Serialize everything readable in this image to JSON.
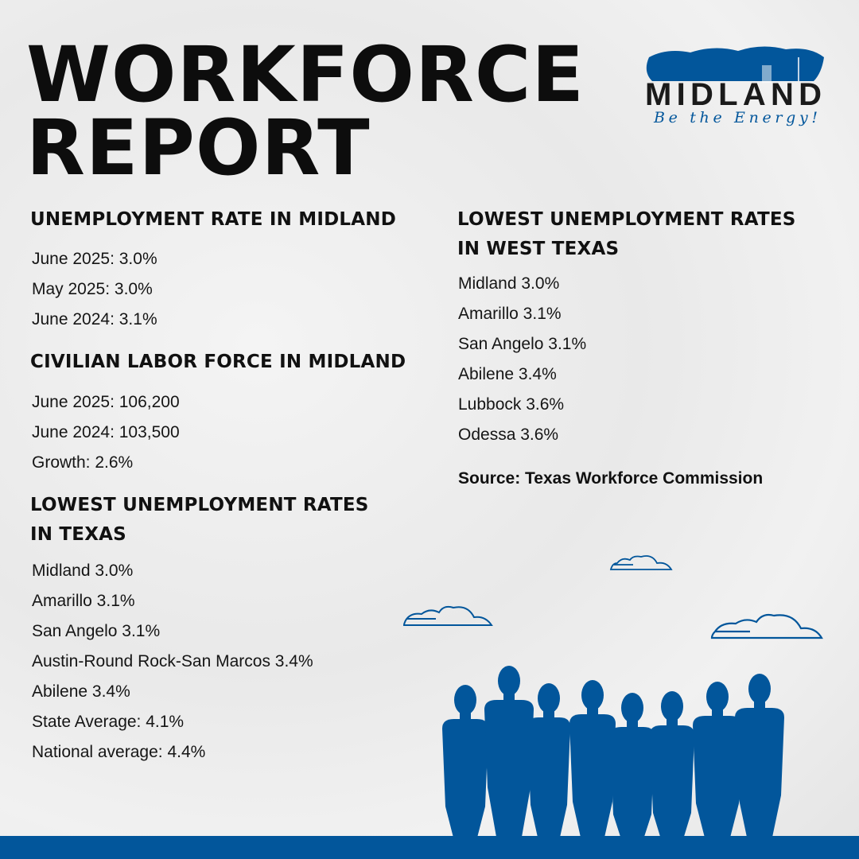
{
  "title": {
    "line1": "WORKFORCE",
    "line2": "REPORT"
  },
  "logo": {
    "text": "MIDLAND",
    "tagline": "Be the Energy!"
  },
  "brand_color": "#02569b",
  "unemployment_midland": {
    "heading": "UNEMPLOYMENT RATE IN MIDLAND",
    "items": [
      "June 2025: 3.0%",
      "May 2025: 3.0%",
      "June 2024: 3.1%"
    ]
  },
  "labor_force": {
    "heading": "CIVILIAN LABOR FORCE IN MIDLAND",
    "items": [
      "June 2025: 106,200",
      "June 2024: 103,500",
      "Growth: 2.6%"
    ]
  },
  "lowest_texas": {
    "heading_line1": "LOWEST UNEMPLOYMENT RATES",
    "heading_line2": "IN TEXAS",
    "items": [
      "Midland 3.0%",
      "Amarillo 3.1%",
      "San Angelo 3.1%",
      "Austin-Round Rock-San Marcos 3.4%",
      "Abilene 3.4%",
      "State Average: 4.1%",
      "National average: 4.4%"
    ]
  },
  "lowest_west_texas": {
    "heading_line1": "LOWEST UNEMPLOYMENT RATES",
    "heading_line2": "IN WEST TEXAS",
    "items": [
      "Midland 3.0%",
      "Amarillo 3.1%",
      "San Angelo 3.1%",
      "Abilene 3.4%",
      "Lubbock 3.6%",
      "Odessa 3.6%"
    ]
  },
  "source": "Source: Texas Workforce Commission"
}
